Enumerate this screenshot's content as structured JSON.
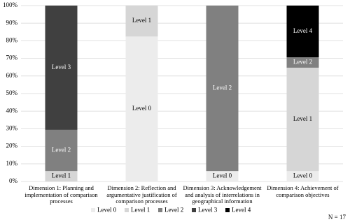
{
  "chart_data": {
    "type": "stacked_bar",
    "categories": [
      "Dimension 1:  Planning and implementation of comparison processes",
      "Dimension 2: Reflection and argumentative justification of comparison processes",
      "Dimension 3: Acknowledgement and analysis of interrelations in geographical information",
      "Dimension 4: Achievement of comparison objectives"
    ],
    "series": [
      {
        "name": "Level 0",
        "color": "#ececec",
        "values": [
          0,
          82.4,
          5.9,
          5.9
        ]
      },
      {
        "name": "Level 1",
        "color": "#d6d6d6",
        "values": [
          5.9,
          17.6,
          0,
          58.8
        ]
      },
      {
        "name": "Level 2",
        "color": "#808080",
        "values": [
          23.5,
          0,
          94.1,
          5.9
        ]
      },
      {
        "name": "Level 3",
        "color": "#404040",
        "values": [
          70.6,
          0,
          0,
          0
        ]
      },
      {
        "name": "Level 4",
        "color": "#000000",
        "values": [
          0,
          0,
          0,
          29.4
        ]
      }
    ],
    "ylim": [
      0,
      100
    ],
    "yticks": [
      {
        "value": 0,
        "label": "0%"
      },
      {
        "value": 10,
        "label": "10%"
      },
      {
        "value": 20,
        "label": "20%"
      },
      {
        "value": 30,
        "label": "30%"
      },
      {
        "value": 40,
        "label": "40%"
      },
      {
        "value": 50,
        "label": "50%"
      },
      {
        "value": 60,
        "label": "60%"
      },
      {
        "value": 70,
        "label": "70%"
      },
      {
        "value": 80,
        "label": "80%"
      },
      {
        "value": 90,
        "label": "90%"
      },
      {
        "value": 100,
        "label": "100%"
      }
    ],
    "grid": true,
    "legend": "bottom",
    "annotation": "N = 17"
  }
}
